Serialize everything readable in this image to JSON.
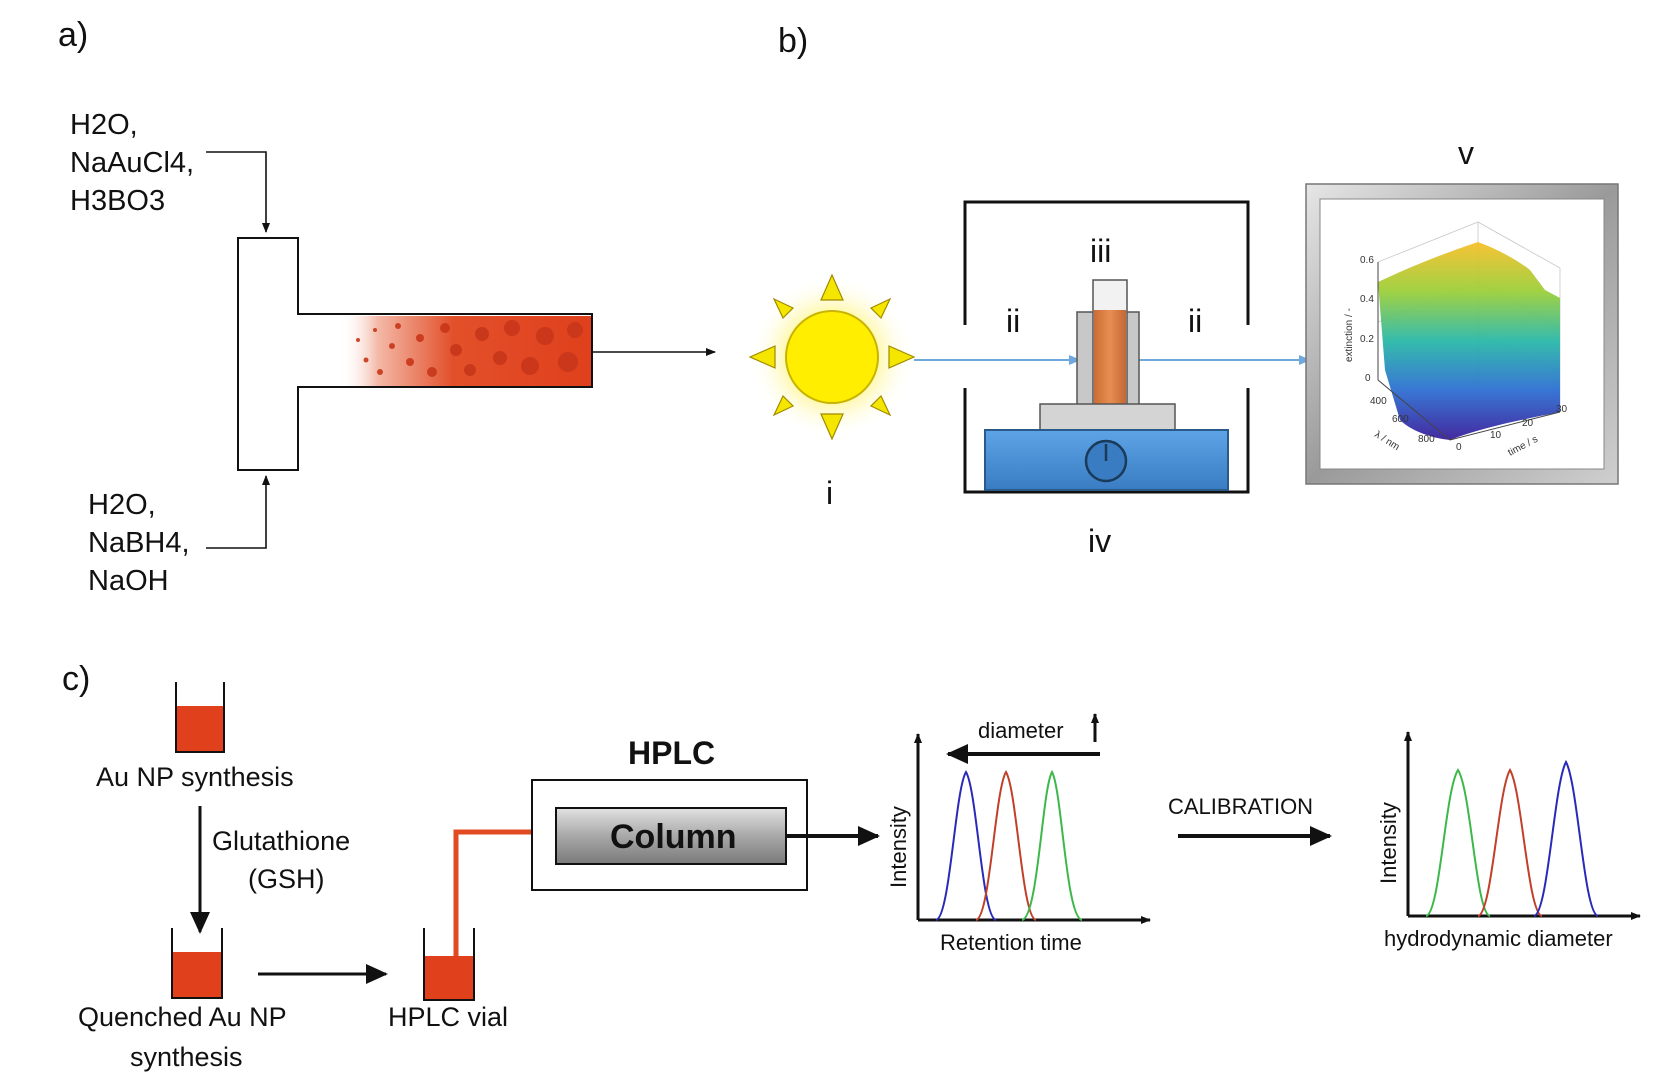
{
  "panels": {
    "a": "a)",
    "b": "b)",
    "c": "c)"
  },
  "panel_a": {
    "inlet_top": [
      "H2O,",
      "NaAuCl4,",
      "H3BO3"
    ],
    "inlet_bottom": [
      "H2O,",
      "NaBH4,",
      "NaOH"
    ]
  },
  "panel_b": {
    "labels": {
      "i": "i",
      "ii_left": "ii",
      "ii_right": "ii",
      "iii": "iii",
      "iv": "iv",
      "v": "v"
    },
    "plot3d": {
      "z_axis_label": "extinction / -",
      "x_axis_label": "λ / nm",
      "y_axis_label": "time / s",
      "z_ticks": [
        "0",
        "0.2",
        "0.4",
        "0.6"
      ],
      "x_ticks": [
        "400",
        "600",
        "800"
      ],
      "y_ticks": [
        "0",
        "10",
        "20",
        "30"
      ]
    }
  },
  "panel_c": {
    "synthesis_label": "Au NP synthesis",
    "quencher_label": [
      "Glutathione",
      "(GSH)"
    ],
    "quenched_label": [
      "Quenched Au NP",
      "synthesis"
    ],
    "vial_label": "HPLC vial",
    "hplc_title": "HPLC",
    "column_label": "Column",
    "chromatogram": {
      "diameter_label": "diameter",
      "y_label": "Intensity",
      "x_label": "Retention time"
    },
    "calibration_label": "CALIBRATION",
    "size_dist": {
      "y_label": "Intensity",
      "x_label": "hydrodynamic diameter"
    }
  },
  "colors": {
    "au_red": "#e0401c",
    "sun_yellow": "#ffee00",
    "stirrer_blue": "#4a8fd4",
    "beam_blue": "#6fa8dc",
    "peak_blue": "#2a2ab8",
    "peak_red": "#c0402a",
    "peak_green": "#3cb84a"
  }
}
